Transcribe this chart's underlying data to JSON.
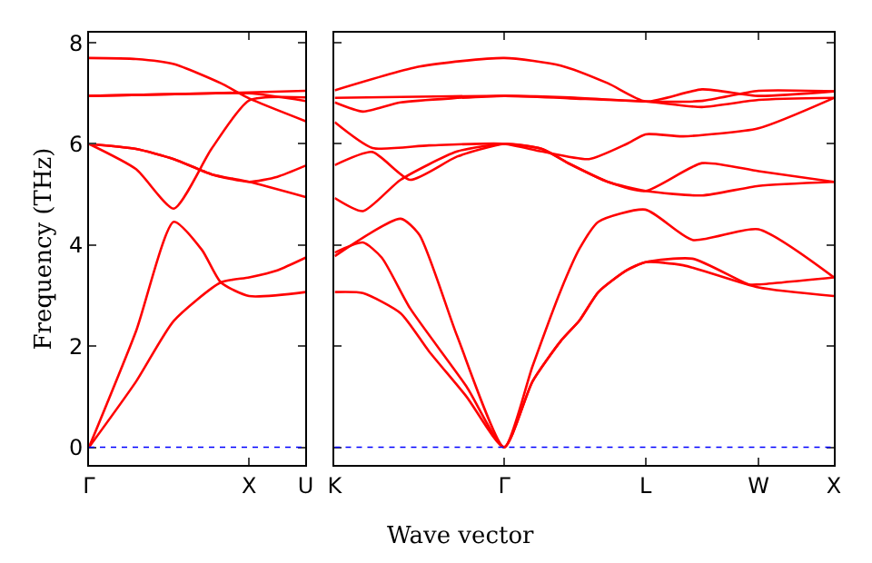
{
  "chart_data": [
    {
      "type": "line",
      "ylabel": "Frequency (THz)",
      "ylim": [
        -0.35,
        8.2
      ],
      "categories": [
        "Γ",
        null,
        null,
        null,
        null,
        null,
        null,
        null,
        null,
        null,
        null,
        null,
        null,
        null,
        null,
        null,
        null,
        "X",
        null,
        null,
        null,
        null,
        null,
        "U"
      ],
      "yticks": [
        0,
        2,
        4,
        6,
        8
      ],
      "marker": "none",
      "line_style": "solid",
      "ref_lines": [
        {
          "axis": "y",
          "value": 0,
          "label": null,
          "color": "#0000ff",
          "line_style": "dotted"
        }
      ],
      "series": [
        {
          "color": "#ff0000",
          "values": [
            0,
            null,
            null,
            null,
            null,
            1.3,
            null,
            null,
            null,
            2.5,
            null,
            null,
            null,
            null,
            3.26,
            null,
            null,
            3.36,
            null,
            null,
            3.5,
            null,
            null,
            3.75
          ]
        },
        {
          "color": "#ff0000",
          "values": [
            0,
            null,
            null,
            null,
            null,
            2.3,
            null,
            null,
            null,
            4.46,
            null,
            null,
            3.9,
            null,
            3.26,
            null,
            null,
            2.99,
            null,
            null,
            null,
            null,
            null,
            3.07
          ]
        },
        {
          "color": "#ff0000",
          "values": [
            6.0,
            null,
            null,
            null,
            null,
            5.5,
            null,
            null,
            null,
            4.72,
            null,
            null,
            null,
            5.9,
            null,
            null,
            null,
            6.86,
            null,
            null,
            null,
            null,
            null,
            6.92
          ]
        },
        {
          "color": "#ff0000",
          "values": [
            6.0,
            null,
            null,
            null,
            null,
            5.9,
            null,
            null,
            null,
            5.7,
            null,
            null,
            null,
            5.4,
            null,
            null,
            null,
            5.25,
            null,
            null,
            null,
            null,
            null,
            4.95
          ]
        },
        {
          "color": "#ff0000",
          "values": [
            6.0,
            null,
            null,
            null,
            null,
            5.9,
            null,
            null,
            null,
            5.7,
            null,
            null,
            null,
            5.4,
            null,
            null,
            null,
            5.25,
            null,
            null,
            5.35,
            null,
            null,
            5.57
          ]
        },
        {
          "color": "#ff0000",
          "values": [
            7.7,
            null,
            null,
            null,
            null,
            7.68,
            null,
            null,
            null,
            7.58,
            null,
            null,
            null,
            null,
            7.2,
            null,
            null,
            6.9,
            null,
            null,
            null,
            null,
            null,
            6.45
          ]
        },
        {
          "color": "#ff0000",
          "values": [
            6.95,
            null,
            null,
            null,
            null,
            null,
            null,
            null,
            6.98,
            null,
            null,
            null,
            null,
            null,
            null,
            null,
            null,
            7.02,
            null,
            null,
            null,
            null,
            null,
            7.05
          ]
        },
        {
          "color": "#ff0000",
          "values": [
            6.95,
            null,
            null,
            null,
            null,
            null,
            null,
            null,
            6.98,
            null,
            null,
            null,
            null,
            null,
            null,
            null,
            null,
            7.0,
            null,
            null,
            null,
            null,
            null,
            6.85
          ]
        }
      ]
    },
    {
      "type": "line",
      "xlabel": "Wave vector",
      "ylim": [
        -0.35,
        8.2
      ],
      "categories": [
        "K",
        null,
        null,
        null,
        null,
        null,
        null,
        null,
        null,
        null,
        null,
        null,
        null,
        null,
        null,
        null,
        null,
        null,
        "Γ",
        null,
        null,
        null,
        null,
        null,
        null,
        null,
        null,
        null,
        null,
        null,
        null,
        null,
        null,
        "L",
        null,
        null,
        null,
        null,
        null,
        null,
        null,
        null,
        null,
        null,
        null,
        "W",
        null,
        null,
        null,
        null,
        null,
        null,
        null,
        "X"
      ],
      "yticks": [
        0,
        2,
        4,
        6,
        8
      ],
      "tick_labels": "x",
      "marker": "none",
      "line_style": "solid",
      "ref_lines": [
        {
          "axis": "y",
          "value": 0,
          "label": null,
          "color": "#0000ff",
          "line_style": "dotted"
        }
      ],
      "series": [
        {
          "color": "#ff0000",
          "values": [
            3.07,
            null,
            null,
            3.05,
            null,
            null,
            null,
            2.65,
            null,
            null,
            1.9,
            null,
            null,
            null,
            1.0,
            null,
            null,
            null,
            0,
            null,
            null,
            1.3,
            null,
            null,
            2.1,
            null,
            2.51,
            null,
            3.07,
            null,
            null,
            3.5,
            null,
            3.66,
            null,
            null,
            null,
            3.6,
            null,
            null,
            null,
            null,
            null,
            null,
            null,
            3.16,
            null,
            null,
            null,
            null,
            null,
            null,
            null,
            2.99
          ]
        },
        {
          "color": "#ff0000",
          "values": [
            3.85,
            null,
            null,
            4.05,
            null,
            3.75,
            null,
            null,
            2.75,
            null,
            null,
            null,
            null,
            null,
            1.2,
            null,
            null,
            null,
            0,
            null,
            null,
            1.3,
            null,
            null,
            2.1,
            null,
            2.51,
            null,
            3.07,
            null,
            null,
            3.5,
            null,
            3.66,
            null,
            null,
            null,
            null,
            3.73,
            null,
            null,
            null,
            null,
            null,
            3.22,
            3.22,
            null,
            null,
            null,
            null,
            null,
            null,
            null,
            3.36
          ]
        },
        {
          "color": "#ff0000",
          "values": [
            3.78,
            null,
            null,
            null,
            null,
            null,
            null,
            4.52,
            null,
            4.2,
            null,
            null,
            null,
            2.2,
            null,
            null,
            null,
            null,
            0,
            null,
            null,
            1.6,
            null,
            null,
            3.1,
            null,
            3.93,
            null,
            4.46,
            null,
            null,
            null,
            null,
            4.7,
            null,
            null,
            null,
            null,
            4.1,
            null,
            null,
            null,
            null,
            null,
            null,
            4.31,
            null,
            null,
            null,
            null,
            null,
            null,
            null,
            3.36
          ]
        },
        {
          "color": "#ff0000",
          "values": [
            4.93,
            null,
            null,
            4.67,
            null,
            null,
            null,
            5.29,
            null,
            null,
            null,
            null,
            null,
            5.85,
            null,
            null,
            null,
            null,
            6.0,
            null,
            null,
            null,
            5.9,
            null,
            null,
            5.6,
            null,
            null,
            null,
            5.25,
            null,
            null,
            null,
            5.07,
            null,
            null,
            null,
            null,
            null,
            4.98,
            null,
            null,
            null,
            null,
            null,
            5.17,
            null,
            null,
            null,
            null,
            null,
            null,
            null,
            5.25
          ]
        },
        {
          "color": "#ff0000",
          "values": [
            5.58,
            null,
            null,
            null,
            5.84,
            null,
            null,
            null,
            5.29,
            null,
            null,
            null,
            null,
            5.75,
            null,
            null,
            null,
            null,
            6.0,
            null,
            null,
            null,
            5.9,
            null,
            null,
            5.6,
            null,
            null,
            null,
            5.25,
            null,
            null,
            null,
            5.07,
            null,
            null,
            null,
            null,
            null,
            5.62,
            null,
            null,
            null,
            null,
            null,
            5.46,
            null,
            null,
            null,
            null,
            null,
            null,
            null,
            5.25
          ]
        },
        {
          "color": "#ff0000",
          "values": [
            6.43,
            null,
            null,
            null,
            5.92,
            null,
            null,
            null,
            null,
            null,
            5.97,
            null,
            null,
            null,
            null,
            null,
            null,
            null,
            6.0,
            null,
            null,
            null,
            5.85,
            null,
            null,
            null,
            null,
            5.7,
            null,
            null,
            null,
            6.0,
            null,
            6.19,
            null,
            null,
            null,
            6.15,
            null,
            null,
            null,
            null,
            null,
            null,
            null,
            6.31,
            null,
            null,
            null,
            null,
            null,
            null,
            null,
            6.91
          ]
        },
        {
          "color": "#ff0000",
          "values": [
            6.82,
            null,
            null,
            6.64,
            null,
            null,
            null,
            6.82,
            null,
            null,
            null,
            null,
            null,
            null,
            null,
            null,
            null,
            null,
            6.95,
            null,
            null,
            null,
            null,
            null,
            null,
            6.9,
            null,
            null,
            null,
            null,
            null,
            null,
            null,
            6.84,
            null,
            null,
            null,
            null,
            null,
            6.73,
            null,
            null,
            null,
            null,
            null,
            6.87,
            null,
            null,
            null,
            null,
            null,
            null,
            null,
            6.91
          ]
        },
        {
          "color": "#ff0000",
          "values": [
            6.91,
            null,
            null,
            null,
            null,
            null,
            null,
            6.93,
            null,
            null,
            null,
            null,
            null,
            null,
            null,
            null,
            null,
            null,
            6.95,
            null,
            null,
            null,
            null,
            null,
            null,
            6.92,
            null,
            null,
            null,
            null,
            null,
            null,
            null,
            6.84,
            null,
            null,
            null,
            null,
            null,
            6.85,
            null,
            null,
            null,
            null,
            null,
            7.05,
            null,
            null,
            null,
            null,
            null,
            null,
            null,
            7.04
          ]
        },
        {
          "color": "#ff0000",
          "values": [
            7.06,
            null,
            null,
            null,
            null,
            null,
            null,
            null,
            null,
            7.53,
            null,
            null,
            null,
            null,
            null,
            null,
            null,
            null,
            7.7,
            null,
            null,
            null,
            null,
            null,
            7.55,
            null,
            null,
            null,
            null,
            7.2,
            null,
            null,
            null,
            6.84,
            null,
            null,
            null,
            null,
            null,
            7.08,
            null,
            null,
            null,
            null,
            null,
            6.95,
            null,
            null,
            null,
            null,
            null,
            null,
            null,
            7.04
          ]
        }
      ]
    }
  ]
}
